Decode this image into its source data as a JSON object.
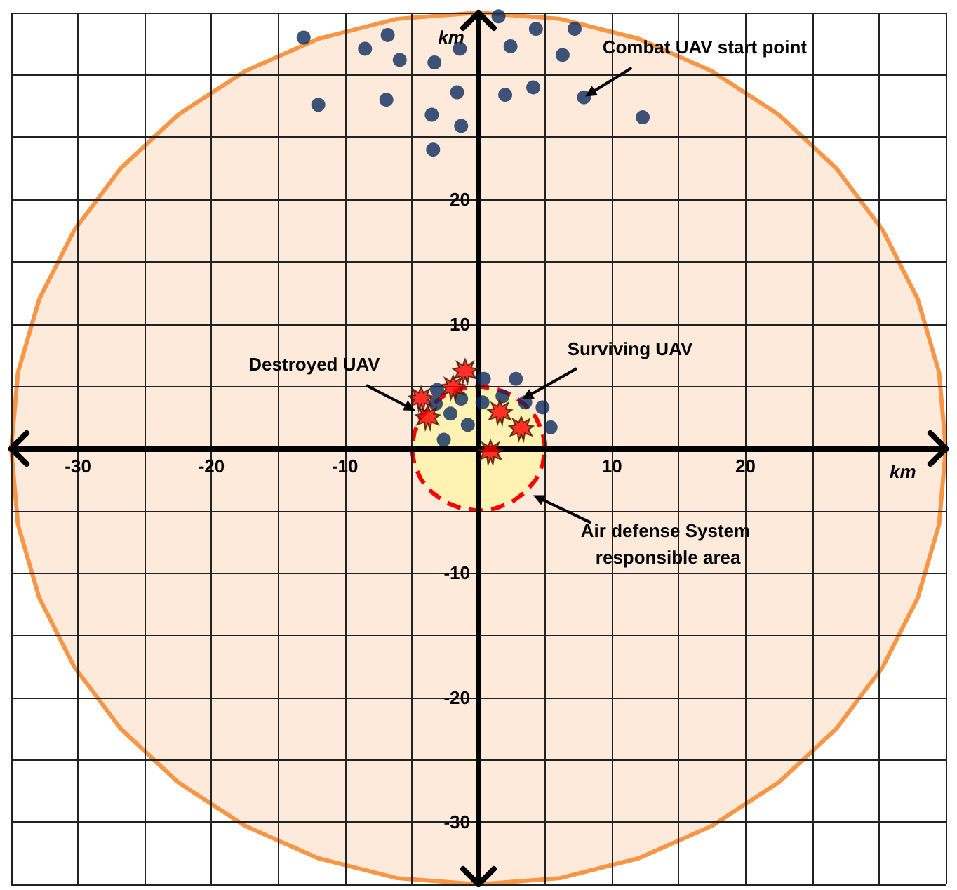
{
  "chart_data": {
    "type": "scatter",
    "xlabel": "km",
    "ylabel": "km",
    "xlim": [
      -35,
      35
    ],
    "ylim": [
      -35,
      35
    ],
    "xticks": [
      {
        "value": -35,
        "label": null
      },
      -30,
      {
        "value": -25,
        "label": null
      },
      -20,
      {
        "value": -15,
        "label": null
      },
      -10,
      {
        "value": -5,
        "label": null
      },
      {
        "value": 0,
        "label": null
      },
      {
        "value": 5,
        "label": null
      },
      10,
      {
        "value": 15,
        "label": null
      },
      20,
      {
        "value": 25,
        "label": null
      },
      {
        "value": 30,
        "label": null
      },
      {
        "value": 35,
        "label": null
      }
    ],
    "yticks": [
      {
        "value": -35,
        "label": null
      },
      -30,
      {
        "value": -25,
        "label": null
      },
      -20,
      {
        "value": -15,
        "label": null
      },
      -10,
      {
        "value": -5,
        "label": null
      },
      {
        "value": 0,
        "label": null
      },
      {
        "value": 5,
        "label": null
      },
      10,
      {
        "value": 15,
        "label": null
      },
      20,
      {
        "value": 25,
        "label": null
      },
      {
        "value": 30,
        "label": null
      },
      {
        "value": 35,
        "label": null
      }
    ],
    "grid": true,
    "series": [
      {
        "type": "area",
        "color": "#f79646",
        "line_style": "solid",
        "x": [
          35,
          34.5,
          32.9,
          30.3,
          26.8,
          22.5,
          17.5,
          12.0,
          6.1,
          0,
          -6.1,
          -12.0,
          -17.5,
          -22.5,
          -26.8,
          -30.3,
          -32.9,
          -34.5,
          -35,
          -34.5,
          -32.9,
          -30.3,
          -26.8,
          -22.5,
          -17.5,
          -12.0,
          -6.1,
          0,
          6.1,
          12.0,
          17.5,
          22.5,
          26.8,
          30.3,
          32.9,
          34.5,
          35
        ],
        "values": [
          0,
          6.1,
          12.0,
          17.5,
          22.5,
          26.8,
          30.3,
          32.9,
          34.5,
          35,
          34.5,
          32.9,
          30.3,
          26.8,
          22.5,
          17.5,
          12.0,
          6.1,
          0,
          -6.1,
          -12.0,
          -17.5,
          -22.5,
          -26.8,
          -30.3,
          -32.9,
          -34.5,
          -35,
          -34.5,
          -32.9,
          -30.3,
          -26.8,
          -22.5,
          -17.5,
          -12.0,
          -6.1,
          0
        ]
      },
      {
        "type": "area",
        "color": "#ff0000",
        "line_style": "dashed",
        "x": [
          5,
          4.8,
          4.3,
          3.5,
          2.5,
          1.3,
          0,
          -1.3,
          -2.5,
          -3.5,
          -4.3,
          -4.8,
          -5,
          -4.8,
          -4.3,
          -3.5,
          -2.5,
          -1.3,
          0,
          1.3,
          2.5,
          3.5,
          4.3,
          4.8,
          5
        ],
        "values": [
          0,
          1.3,
          2.5,
          3.5,
          4.3,
          4.8,
          5,
          4.8,
          4.3,
          3.5,
          2.5,
          1.3,
          0,
          -1.3,
          -2.5,
          -3.5,
          -4.3,
          -4.8,
          -5,
          -4.8,
          -4.3,
          -3.5,
          -2.5,
          -1.3,
          0
        ]
      },
      {
        "type": "scatter",
        "color": "#0e2a5e",
        "marker": "circle",
        "x": [
          -13.1,
          -8.5,
          -6.8,
          -5.9,
          -3.3,
          -1.4,
          1.5,
          2.4,
          4.3,
          6.3,
          7.2,
          -12.0,
          -6.9,
          -3.5,
          -1.6,
          -1.3,
          2.0,
          4.1,
          7.9,
          12.3,
          -3.4
        ],
        "values": [
          33.0,
          32.1,
          33.2,
          31.2,
          31.0,
          32.1,
          34.7,
          32.3,
          33.7,
          31.6,
          33.7,
          27.6,
          28.0,
          26.8,
          28.6,
          25.9,
          28.4,
          29.0,
          28.2,
          26.6,
          24.0
        ]
      },
      {
        "type": "scatter",
        "color": "#0e2a5e",
        "marker": "circle",
        "x": [
          0.4,
          2.8,
          -3.1,
          -3.2,
          -1.3,
          0.3,
          1.8,
          3.5,
          4.8,
          -2.1,
          -0.8,
          5.4,
          -2.6
        ],
        "values": [
          5.6,
          5.6,
          4.7,
          3.6,
          4.0,
          3.7,
          4.2,
          3.7,
          3.3,
          2.8,
          1.9,
          1.7,
          0.7
        ]
      },
      {
        "type": "scatter",
        "color": "#ff0000",
        "marker": "star",
        "x": [
          -1.0,
          -1.9,
          -4.3,
          -3.8,
          1.6,
          3.2,
          0.9
        ],
        "values": [
          6.2,
          4.9,
          4.0,
          2.5,
          2.9,
          1.6,
          -0.3
        ]
      }
    ],
    "annotations": [
      {
        "text": "Combat UAV start point",
        "x": 7.9,
        "y": 28.2
      },
      "Surviving UAV",
      "Destroyed UAV",
      {
        "text": "Air defense System responsible area",
        "x": 4.0,
        "y": -3.7
      }
    ]
  }
}
